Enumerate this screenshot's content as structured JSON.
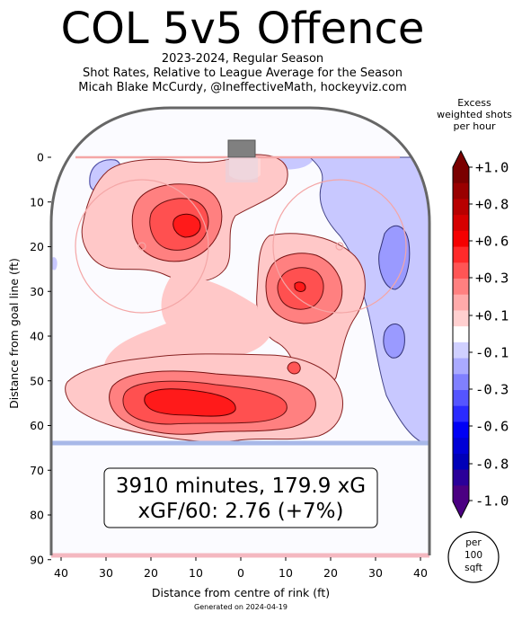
{
  "chart_data": {
    "type": "heatmap",
    "title": "COL 5v5 Offence",
    "subtitle_lines": [
      "2023-2024, Regular Season",
      "Shot Rates, Relative to League Average for the Season",
      "Micah Blake McCurdy, @IneffectiveMath, hockeyviz.com"
    ],
    "xlabel": "Distance from centre of rink (ft)",
    "ylabel": "Distance from goal line (ft)",
    "x_ticks": [
      "40",
      "30",
      "20",
      "10",
      "0",
      "10",
      "20",
      "30",
      "40"
    ],
    "y_ticks": [
      "0",
      "10",
      "20",
      "30",
      "40",
      "50",
      "60",
      "70",
      "80",
      "90"
    ],
    "xlim": [
      -42,
      42
    ],
    "ylim": [
      90,
      -11
    ],
    "annotation_line1": "3910 minutes, 179.9 xG",
    "annotation_line2": "xGF/60: 2.76 (+7%)",
    "colorbar": {
      "title_lines": [
        "Excess",
        "weighted shots",
        "per hour"
      ],
      "tick_labels": [
        "+1.0",
        "+0.8",
        "+0.6",
        "+0.3",
        "+0.1",
        "-0.1",
        "-0.3",
        "-0.6",
        "-0.8",
        "-1.0"
      ],
      "unit_lines": [
        "per",
        "100",
        "sqft"
      ],
      "colors": [
        "#7a0000",
        "#990000",
        "#b80000",
        "#d60000",
        "#f50000",
        "#ff2a2a",
        "#ff5555",
        "#ff8080",
        "#ffaaaa",
        "#ffd0d0",
        "#ffffff",
        "#d0d0ff",
        "#aaaaff",
        "#8080ff",
        "#5555ff",
        "#2a2aff",
        "#0000f5",
        "#0000d6",
        "#0000b8",
        "#2a0099",
        "#4b0082"
      ]
    },
    "regions": [
      {
        "label": "upper left shooting lane",
        "x": -18,
        "y": 18,
        "level": 0.1
      },
      {
        "label": "left high slot",
        "x": -12,
        "y": 17,
        "level": 0.3
      },
      {
        "label": "left high slot peak",
        "x": -12,
        "y": 15,
        "level": 0.6
      },
      {
        "label": "right circle",
        "x": 14,
        "y": 31,
        "level": 0.3
      },
      {
        "label": "right circle peak",
        "x": 12,
        "y": 30,
        "level": 0.6
      },
      {
        "label": "slot area",
        "x": -4,
        "y": 52,
        "level": 0.3
      },
      {
        "label": "slot peak",
        "x": -8,
        "y": 53,
        "level": 0.6
      },
      {
        "label": "right point",
        "x": 30,
        "y": 20,
        "level": -0.1
      },
      {
        "label": "right point low",
        "x": 32,
        "y": 24,
        "level": -0.3
      },
      {
        "label": "centre",
        "x": -7,
        "y": 32,
        "level": -0.1
      }
    ]
  },
  "footer": "Generated on 2024-04-19"
}
